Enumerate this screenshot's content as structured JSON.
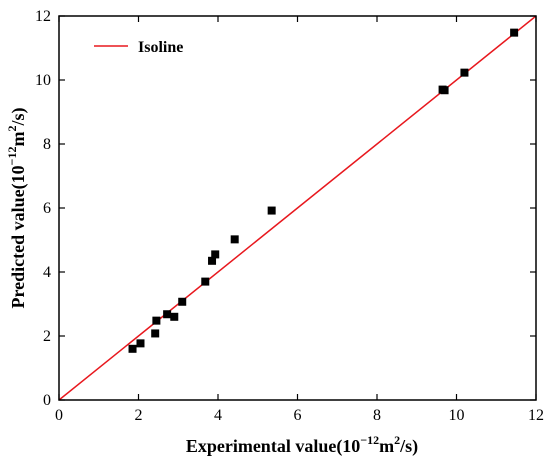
{
  "chart_data": {
    "type": "scatter",
    "x_axis": {
      "label_main": "Experimental value(10",
      "label_exp1": "−12",
      "label_mid": "m",
      "label_exp2": "2",
      "label_end": "/s)",
      "range": [
        0,
        12
      ],
      "ticks": [
        "0",
        "2",
        "4",
        "6",
        "8",
        "10",
        "12"
      ]
    },
    "y_axis": {
      "label_main": "Predicted value(10",
      "label_exp1": "−12",
      "label_mid": "m",
      "label_exp2": "2",
      "label_end": "/s)",
      "range": [
        0,
        12
      ],
      "ticks": [
        "0",
        "2",
        "4",
        "6",
        "8",
        "10",
        "12"
      ]
    },
    "legend": {
      "label": "Isoline",
      "placement": "top-left"
    },
    "isoline": {
      "x": [
        0,
        12
      ],
      "y": [
        0,
        12
      ]
    },
    "points": [
      {
        "x": 1.85,
        "y": 1.6
      },
      {
        "x": 2.05,
        "y": 1.77
      },
      {
        "x": 2.42,
        "y": 2.08
      },
      {
        "x": 2.45,
        "y": 2.48
      },
      {
        "x": 2.72,
        "y": 2.68
      },
      {
        "x": 2.9,
        "y": 2.6
      },
      {
        "x": 3.1,
        "y": 3.07
      },
      {
        "x": 3.68,
        "y": 3.7
      },
      {
        "x": 3.85,
        "y": 4.35
      },
      {
        "x": 3.93,
        "y": 4.55
      },
      {
        "x": 4.42,
        "y": 5.02
      },
      {
        "x": 5.35,
        "y": 5.92
      },
      {
        "x": 9.65,
        "y": 9.7
      },
      {
        "x": 9.7,
        "y": 9.68
      },
      {
        "x": 10.2,
        "y": 10.23
      },
      {
        "x": 11.45,
        "y": 11.48
      }
    ],
    "colors": {
      "isoline": "#e8181e",
      "points": "#000000",
      "axes": "#000000"
    },
    "grid": false
  }
}
